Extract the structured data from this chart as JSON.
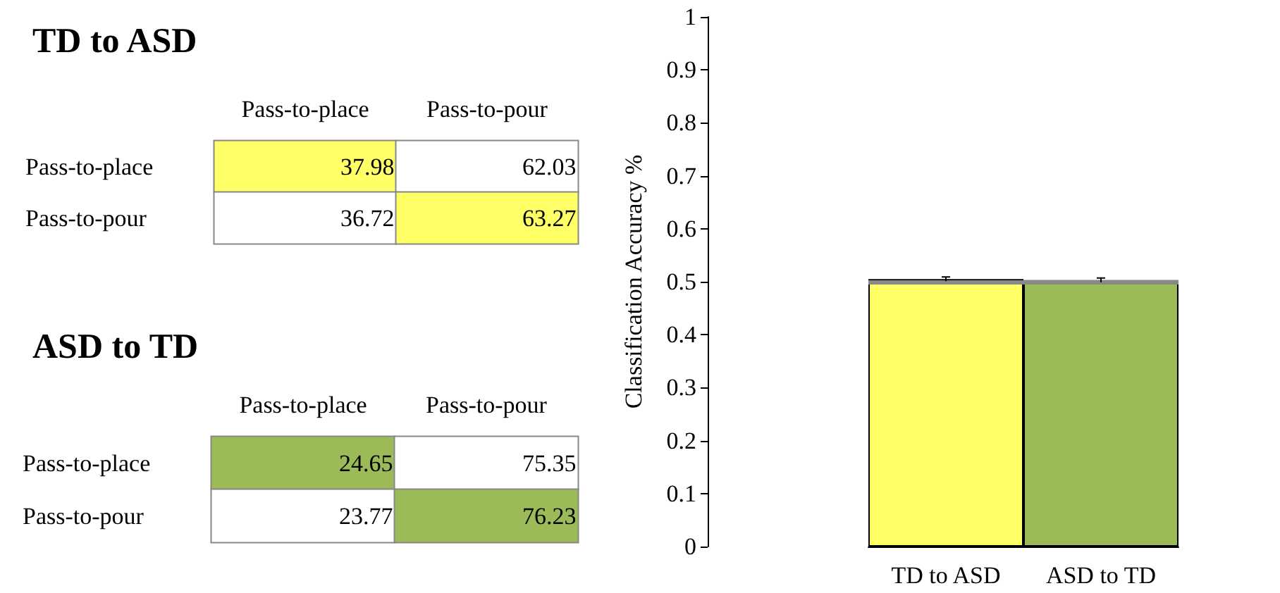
{
  "chart_data": [
    {
      "type": "heatmap",
      "title": "TD to ASD",
      "categories": [
        "Pass-to-place",
        "Pass-to-pour"
      ],
      "y_categories": [
        "Pass-to-place",
        "Pass-to-pour"
      ],
      "cells": [
        [
          37.98,
          62.03
        ],
        [
          36.72,
          63.27
        ]
      ],
      "colors": [
        [
          "#ffff66",
          "#ffffff"
        ],
        [
          "#ffffff",
          "#ffff66"
        ]
      ],
      "data_labels": true
    },
    {
      "type": "heatmap",
      "title": "ASD to TD",
      "categories": [
        "Pass-to-place",
        "Pass-to-pour"
      ],
      "y_categories": [
        "Pass-to-place",
        "Pass-to-pour"
      ],
      "cells": [
        [
          24.65,
          75.35
        ],
        [
          23.77,
          76.23
        ]
      ],
      "colors": [
        [
          "#9bbb59",
          "#ffffff"
        ],
        [
          "#ffffff",
          "#9bbb59"
        ]
      ],
      "data_labels": true
    },
    {
      "type": "bar",
      "categories": [
        "TD to ASD",
        "ASD to TD"
      ],
      "values": [
        0.505,
        0.503
      ],
      "errors": [
        0.004,
        0.004
      ],
      "colors": [
        "#ffff66",
        "#9bbb59"
      ],
      "ylabel": "Classification Accuracy %",
      "ylim": [
        0,
        1
      ],
      "yticks": [
        0,
        0.1,
        0.2,
        0.3,
        0.4,
        0.5,
        0.6,
        0.7,
        0.8,
        0.9,
        1
      ],
      "ref_lines": [
        {
          "axis": "y",
          "value": 0.5,
          "color": "#888888"
        }
      ]
    }
  ]
}
